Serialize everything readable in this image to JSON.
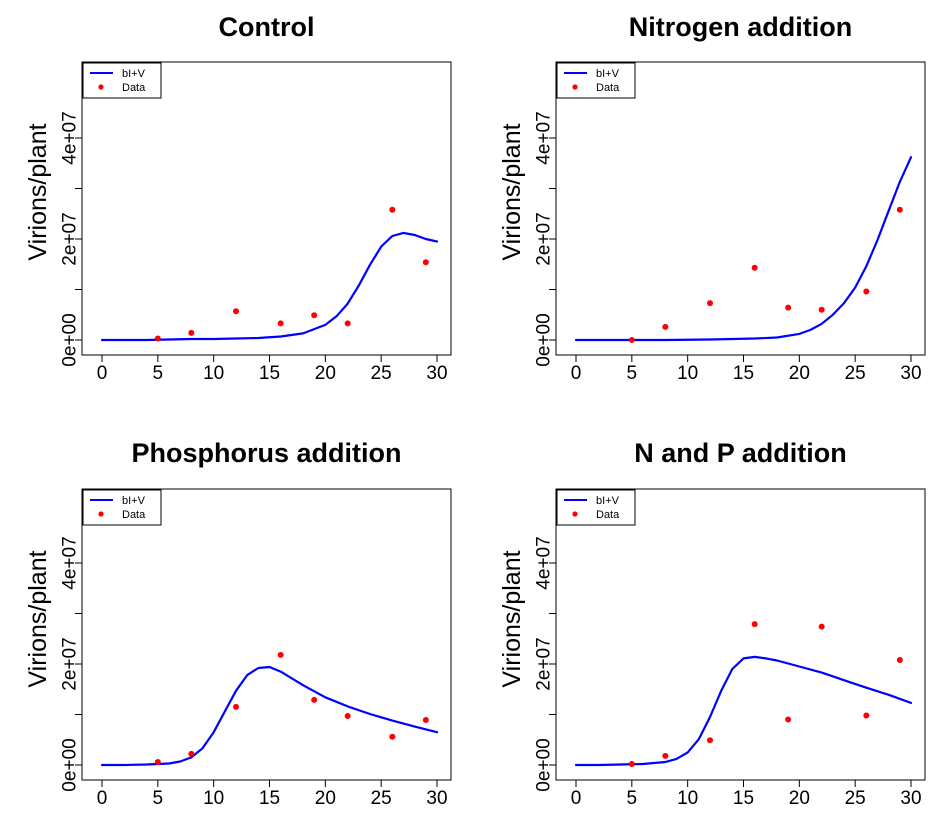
{
  "colors": {
    "model_line": "#0000ff",
    "data_points": "#ff0000",
    "axis": "#000000"
  },
  "chart_data": [
    {
      "type": "line",
      "title": "Control",
      "xlabel": "",
      "ylabel": "Virions/plant",
      "xlim": [
        0,
        30
      ],
      "ylim": [
        0,
        50000000
      ],
      "x_ticks": [
        "0",
        "5",
        "10",
        "15",
        "20",
        "25",
        "30"
      ],
      "y_ticks": [
        "0e+00",
        "2e+07",
        "4e+07"
      ],
      "legend": {
        "position": "top-left",
        "entries": [
          "bI+V",
          "Data"
        ]
      },
      "series": [
        {
          "name": "bI+V",
          "kind": "line",
          "x": [
            0,
            2,
            4,
            6,
            8,
            10,
            12,
            14,
            16,
            18,
            20,
            21,
            22,
            23,
            24,
            25,
            26,
            27,
            28,
            29,
            30
          ],
          "y": [
            0,
            0,
            0,
            100000,
            200000,
            200000,
            300000,
            400000,
            700000,
            1300000,
            3000000,
            4700000,
            7200000,
            10800000,
            14900000,
            18500000,
            20600000,
            21200000,
            20800000,
            20000000,
            19500000
          ]
        },
        {
          "name": "Data",
          "kind": "scatter",
          "x": [
            5,
            8,
            12,
            16,
            19,
            22,
            26,
            29
          ],
          "y": [
            300000,
            1400000,
            5700000,
            3300000,
            4900000,
            3300000,
            25800000,
            15400000
          ]
        }
      ]
    },
    {
      "type": "line",
      "title": "Nitrogen addition",
      "xlabel": "",
      "ylabel": "Virions/plant",
      "xlim": [
        0,
        30
      ],
      "ylim": [
        0,
        50000000
      ],
      "x_ticks": [
        "0",
        "5",
        "10",
        "15",
        "20",
        "25",
        "30"
      ],
      "y_ticks": [
        "0e+00",
        "2e+07",
        "4e+07"
      ],
      "legend": {
        "position": "top-left",
        "entries": [
          "bI+V",
          "Data"
        ]
      },
      "series": [
        {
          "name": "bI+V",
          "kind": "line",
          "x": [
            0,
            4,
            8,
            12,
            16,
            18,
            20,
            21,
            22,
            23,
            24,
            25,
            26,
            27,
            28,
            29,
            30
          ],
          "y": [
            0,
            0,
            0,
            100000,
            300000,
            500000,
            1200000,
            2000000,
            3200000,
            5000000,
            7300000,
            10400000,
            14600000,
            19800000,
            25600000,
            31300000,
            36200000
          ]
        },
        {
          "name": "Data",
          "kind": "scatter",
          "x": [
            5,
            8,
            12,
            16,
            19,
            22,
            26,
            29
          ],
          "y": [
            0,
            2600000,
            7300000,
            14300000,
            6400000,
            6000000,
            9600000,
            25800000
          ]
        }
      ]
    },
    {
      "type": "line",
      "title": "Phosphorus addition",
      "xlabel": "",
      "ylabel": "Virions/plant",
      "xlim": [
        0,
        30
      ],
      "ylim": [
        0,
        50000000
      ],
      "x_ticks": [
        "0",
        "5",
        "10",
        "15",
        "20",
        "25",
        "30"
      ],
      "y_ticks": [
        "0e+00",
        "2e+07",
        "4e+07"
      ],
      "legend": {
        "position": "top-left",
        "entries": [
          "bI+V",
          "Data"
        ]
      },
      "series": [
        {
          "name": "bI+V",
          "kind": "line",
          "x": [
            0,
            2,
            4,
            6,
            7,
            8,
            9,
            10,
            11,
            12,
            13,
            14,
            15,
            16,
            18,
            20,
            22,
            24,
            26,
            28,
            30
          ],
          "y": [
            0,
            0,
            100000,
            300000,
            700000,
            1500000,
            3300000,
            6500000,
            10600000,
            14700000,
            17800000,
            19200000,
            19400000,
            18500000,
            15800000,
            13400000,
            11600000,
            10100000,
            8800000,
            7600000,
            6500000
          ]
        },
        {
          "name": "Data",
          "kind": "scatter",
          "x": [
            5,
            8,
            12,
            16,
            19,
            22,
            26,
            29
          ],
          "y": [
            600000,
            2200000,
            11500000,
            21800000,
            12900000,
            9700000,
            5600000,
            8900000
          ]
        }
      ]
    },
    {
      "type": "line",
      "title": "N and P addition",
      "xlabel": "",
      "ylabel": "Virions/plant",
      "xlim": [
        0,
        30
      ],
      "ylim": [
        0,
        50000000
      ],
      "x_ticks": [
        "0",
        "5",
        "10",
        "15",
        "20",
        "25",
        "30"
      ],
      "y_ticks": [
        "0e+00",
        "2e+07",
        "4e+07"
      ],
      "legend": {
        "position": "top-left",
        "entries": [
          "bI+V",
          "Data"
        ]
      },
      "series": [
        {
          "name": "bI+V",
          "kind": "line",
          "x": [
            0,
            2,
            4,
            6,
            8,
            9,
            10,
            11,
            12,
            13,
            14,
            15,
            16,
            17,
            18,
            20,
            22,
            24,
            26,
            28,
            30
          ],
          "y": [
            0,
            0,
            100000,
            200000,
            600000,
            1200000,
            2500000,
            5100000,
            9500000,
            14700000,
            19000000,
            21100000,
            21400000,
            21100000,
            20700000,
            19500000,
            18300000,
            16800000,
            15300000,
            13900000,
            12300000
          ]
        },
        {
          "name": "Data",
          "kind": "scatter",
          "x": [
            5,
            8,
            12,
            16,
            19,
            22,
            26,
            29
          ],
          "y": [
            200000,
            1800000,
            4900000,
            27900000,
            9000000,
            27400000,
            9800000,
            20800000
          ]
        }
      ]
    }
  ]
}
